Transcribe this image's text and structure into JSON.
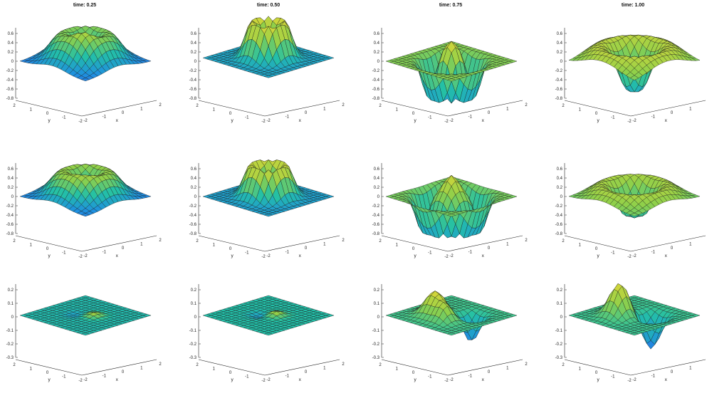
{
  "chart_data": {
    "type": "surface",
    "layout": {
      "rows": 3,
      "cols": 4
    },
    "titles": [
      "time: 0.25",
      "time: 0.50",
      "time: 0.75",
      "time: 1.00"
    ],
    "xlabel": "x",
    "ylabel": "y",
    "x_ticks": [
      "-2",
      "-1",
      "0",
      "1",
      "2"
    ],
    "y_ticks": [
      "2",
      "1",
      "0",
      "-1",
      "-2"
    ],
    "x_range": [
      -2,
      2
    ],
    "y_range": [
      -2,
      2
    ],
    "colormap": [
      "#3b3bd6",
      "#1f8fe0",
      "#23c0a6",
      "#8fd04a",
      "#f0d832"
    ],
    "mesh_color": "#1a1a1a",
    "rows": [
      {
        "zlim": [
          -0.8,
          0.7
        ],
        "z_ticks": [
          "0.6",
          "0.4",
          "0.2",
          "0",
          "-0.2",
          "-0.4",
          "-0.6",
          "-0.8"
        ],
        "panels": [
          {
            "time": 0.25,
            "z_min": -0.05,
            "z_max": 0.6
          },
          {
            "time": 0.5,
            "z_min": -0.15,
            "z_max": 0.6
          },
          {
            "time": 0.75,
            "z_min": -0.75,
            "z_max": 0.3
          },
          {
            "time": 1.0,
            "z_min": -0.75,
            "z_max": 0.35
          }
        ]
      },
      {
        "zlim": [
          -0.8,
          0.7
        ],
        "z_ticks": [
          "0.6",
          "0.4",
          "0.2",
          "0",
          "-0.2",
          "-0.4",
          "-0.6",
          "-0.8"
        ],
        "panels": [
          {
            "time": 0.25,
            "z_min": -0.05,
            "z_max": 0.5
          },
          {
            "time": 0.5,
            "z_min": -0.15,
            "z_max": 0.5
          },
          {
            "time": 0.75,
            "z_min": -0.75,
            "z_max": 0.35
          },
          {
            "time": 1.0,
            "z_min": -0.7,
            "z_max": 0.35
          }
        ]
      },
      {
        "zlim": [
          -0.3,
          0.3
        ],
        "z_ticks": [
          "0.2",
          "0.1",
          "0",
          "-0.1",
          "-0.2",
          "-0.3"
        ],
        "panels": [
          {
            "time": 0.25,
            "z_min": -0.02,
            "z_max": 0.03
          },
          {
            "time": 0.5,
            "z_min": -0.03,
            "z_max": 0.04
          },
          {
            "time": 0.75,
            "z_min": -0.22,
            "z_max": 0.2
          },
          {
            "time": 1.0,
            "z_min": -0.28,
            "z_max": 0.27
          }
        ]
      }
    ]
  }
}
